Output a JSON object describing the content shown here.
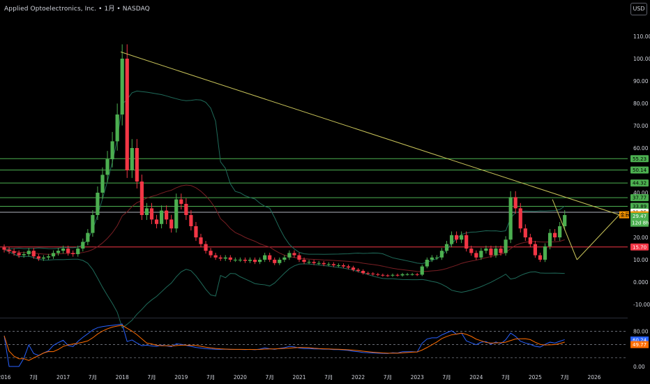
{
  "header": {
    "title": "Applied Optoelectronics, Inc. • 1月 • NASDAQ",
    "currency_button": "USD"
  },
  "colors": {
    "up": "#4caf50",
    "down": "#f23645",
    "trendline": "#c9c45a",
    "band": "#1f6b5a",
    "basis": "#7a1f24",
    "hline_green": "#4caf50",
    "hline_white": "#b2b5be",
    "hline_red": "#f23645",
    "rsi": "#2962ff",
    "rsi_ma": "#ff6d00"
  },
  "chart_data": [
    {
      "type": "candlestick",
      "title": "",
      "y_axis": {
        "ticks": [
          "110.00",
          "100.00",
          "90.00",
          "80.00",
          "70.00",
          "60.00",
          "50.00",
          "40.00",
          "30.00",
          "20.00",
          "10.00",
          "0.000",
          "-10.00"
        ],
        "tick_values": [
          110,
          100,
          90,
          80,
          70,
          60,
          50,
          40,
          30,
          20,
          10,
          0,
          -10
        ],
        "range": [
          -13,
          117
        ]
      },
      "x_axis": {
        "labels": [
          "2016",
          "7月",
          "2017",
          "7月",
          "2018",
          "7月",
          "2019",
          "7月",
          "2020",
          "7月",
          "2021",
          "7月",
          "2022",
          "7月",
          "2023",
          "7月",
          "2024",
          "7月",
          "2025",
          "7月",
          "2026"
        ],
        "label_months": [
          0,
          6,
          12,
          18,
          24,
          30,
          36,
          42,
          48,
          54,
          60,
          66,
          72,
          78,
          84,
          90,
          96,
          102,
          108,
          114,
          120
        ]
      },
      "candles_monthly_close": [
        14.5,
        13.8,
        13,
        12,
        12.5,
        14,
        11.5,
        10.5,
        11,
        11.5,
        13,
        14,
        15,
        13,
        12.5,
        15,
        18,
        22,
        30,
        40,
        48,
        55,
        63,
        75,
        100,
        50,
        60,
        45,
        30,
        33,
        28,
        26,
        32,
        28,
        24,
        37,
        35,
        30,
        25,
        20,
        17,
        14,
        12,
        11,
        10.5,
        11,
        10,
        10,
        10,
        9.5,
        10,
        9,
        10,
        12,
        10,
        8.5,
        10,
        11,
        13,
        12,
        10,
        9,
        9,
        8.5,
        8.5,
        8,
        8,
        7.5,
        7.5,
        7,
        6.5,
        5.5,
        5,
        4,
        3.8,
        3.5,
        3.2,
        3,
        2.9,
        3.2,
        3,
        3.5,
        3.5,
        3.5,
        3.3,
        7,
        10,
        11,
        11,
        14,
        17,
        21,
        19,
        21,
        15,
        13,
        11,
        14,
        15,
        12,
        15,
        13,
        19,
        38,
        33,
        24,
        20,
        17,
        12,
        10,
        16,
        22,
        20,
        25,
        30
      ],
      "price_lines": [
        {
          "value": 55.23,
          "label": "55.23",
          "color": "#4caf50"
        },
        {
          "value": 50.14,
          "label": "50.14",
          "color": "#4caf50"
        },
        {
          "value": 44.32,
          "label": "44.32",
          "color": "#4caf50"
        },
        {
          "value": 37.77,
          "label": "37.77",
          "color": "#4caf50"
        },
        {
          "value": 33.89,
          "label": "33.89",
          "color": "#4caf50"
        },
        {
          "value": 31.25,
          "label": "31.25",
          "color": "#b2b5be"
        },
        {
          "value": 15.7,
          "label": "15.70",
          "color": "#f23645"
        }
      ],
      "current_price": {
        "value": 29.47,
        "label": "29.47",
        "countdown": "12d 8h"
      },
      "triangle_apex": {
        "value": 30.11,
        "label": "30.11",
        "tag": "金辰"
      }
    },
    {
      "type": "line",
      "title": "",
      "y_axis": {
        "ticks": [
          "80.00",
          "0.00"
        ],
        "tick_values": [
          80,
          0
        ],
        "range": [
          -5,
          100
        ]
      },
      "reference_lines": [
        80,
        50,
        20
      ],
      "rsi_value": {
        "value": 60.24,
        "label": "60.24"
      },
      "rsi_ma_value": {
        "value": 49.77,
        "label": "49.77"
      }
    }
  ]
}
